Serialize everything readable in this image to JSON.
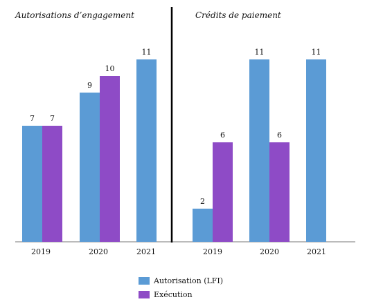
{
  "chart_data": {
    "type": "bar",
    "series_names": [
      "Autorisation (LFI)",
      "Exécution"
    ],
    "colors": {
      "autorisation": "#5b9bd5",
      "execution": "#8e4bc6"
    },
    "panels": [
      {
        "title": "Autorisations d’engagement",
        "categories": [
          "2019",
          "2020",
          "2021"
        ],
        "series": [
          {
            "name": "Autorisation (LFI)",
            "values": [
              7,
              9,
              11
            ]
          },
          {
            "name": "Exécution",
            "values": [
              7,
              10,
              null
            ]
          }
        ]
      },
      {
        "title": "Crédits de paiement",
        "categories": [
          "2019",
          "2020",
          "2021"
        ],
        "series": [
          {
            "name": "Autorisation (LFI)",
            "values": [
              2,
              11,
              11
            ]
          },
          {
            "name": "Exécution",
            "values": [
              6,
              6,
              null
            ]
          }
        ]
      }
    ],
    "ylim": [
      0,
      12
    ]
  }
}
